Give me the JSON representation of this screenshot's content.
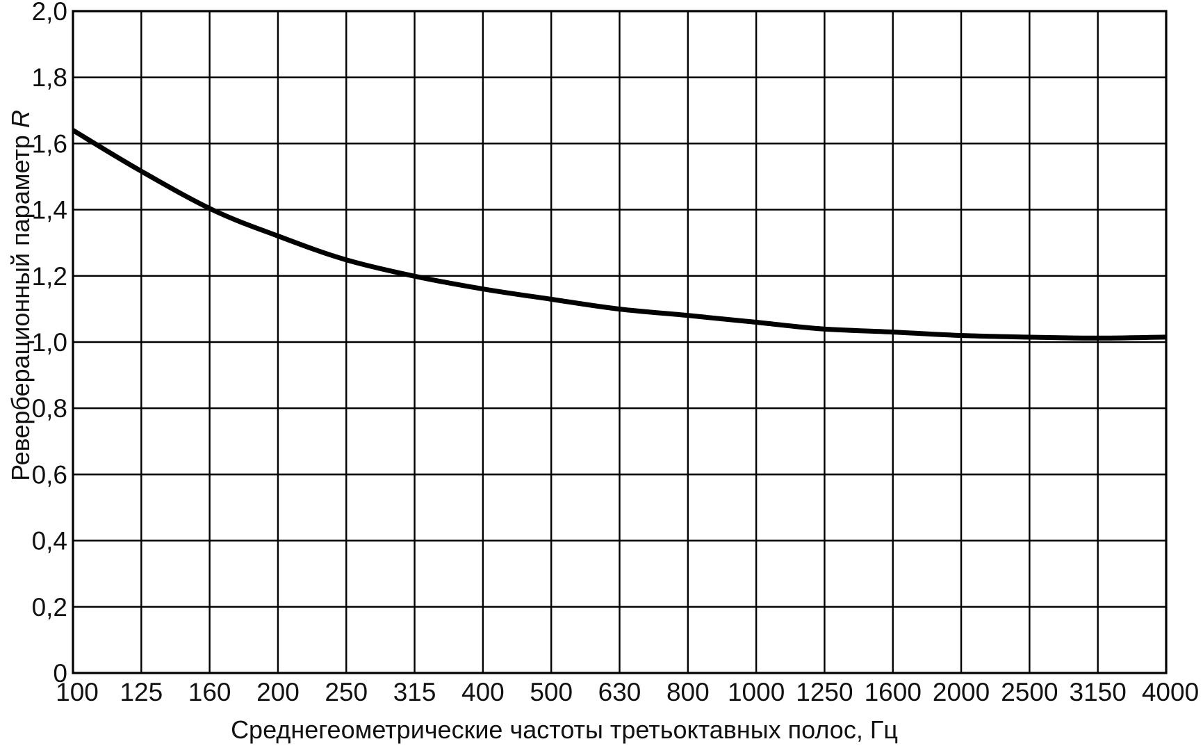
{
  "chart_data": {
    "type": "line",
    "categories": [
      "100",
      "125",
      "160",
      "200",
      "250",
      "315",
      "400",
      "500",
      "630",
      "800",
      "1000",
      "1250",
      "1600",
      "2000",
      "2500",
      "3150",
      "4000"
    ],
    "xlabel": "Среднегеометрические частоты третьоктавных полос, Гц",
    "ylabel": "Реверберационный параметр",
    "ylabel_symbol": "R",
    "ylim": [
      0,
      2.0
    ],
    "yticks": [
      "0",
      "0,2",
      "0,4",
      "0,6",
      "0,8",
      "1,0",
      "1,2",
      "1,4",
      "1,6",
      "1,8",
      "2,0"
    ],
    "x_scale": "log",
    "grid": true,
    "series": [
      {
        "color": "#000000",
        "x": [
          100,
          125,
          160,
          200,
          250,
          315,
          400,
          500,
          630,
          800,
          1000,
          1250,
          1600,
          2000,
          2500,
          3150,
          4000
        ],
        "values": [
          1.64,
          1.52,
          1.4,
          1.32,
          1.25,
          1.2,
          1.16,
          1.13,
          1.1,
          1.08,
          1.06,
          1.04,
          1.03,
          1.02,
          1.015,
          1.012,
          1.015
        ]
      }
    ]
  }
}
